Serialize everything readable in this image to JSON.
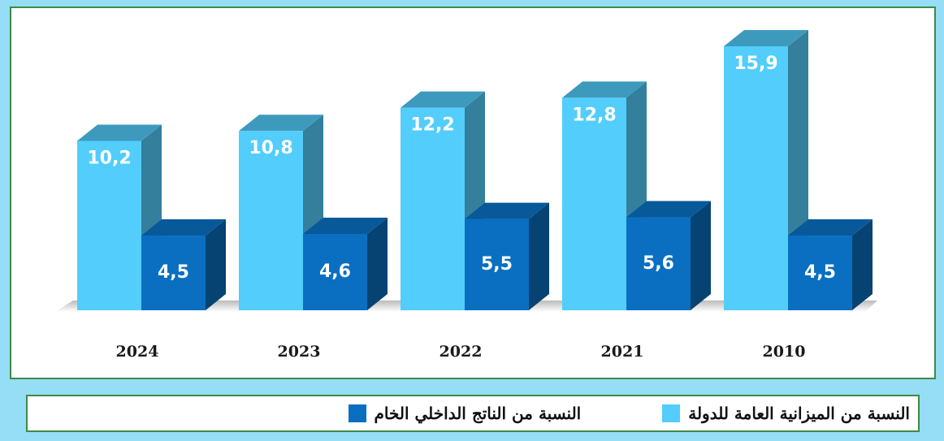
{
  "chart_data": {
    "type": "bar3d",
    "categories": [
      "2024",
      "2023",
      "2022",
      "2021",
      "2010"
    ],
    "series": [
      {
        "name": "النسبة من الميزانية العامة للدولة",
        "color": "#52cdfc",
        "values": [
          10.2,
          10.8,
          12.2,
          12.8,
          15.9
        ],
        "value_labels": [
          "10,2",
          "10,8",
          "12,2",
          "12,8",
          "15,9"
        ]
      },
      {
        "name": "النسبة من الناتج الداخلي الخام",
        "color": "#0a6fc0",
        "values": [
          4.5,
          4.6,
          5.5,
          5.6,
          4.5
        ],
        "value_labels": [
          "4,5",
          "4,6",
          "5,5",
          "5,6",
          "4,5"
        ]
      }
    ]
  }
}
